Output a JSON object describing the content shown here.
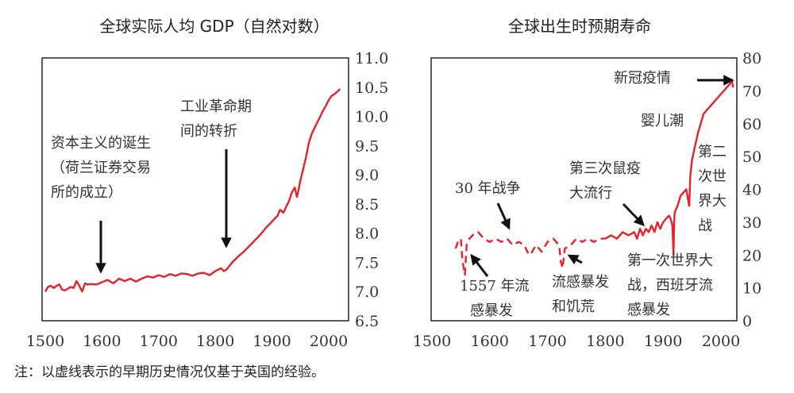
{
  "note": "注：以虚线表示的早期历史情况仅基于英国的经验。",
  "colors": {
    "line": "#e8202a",
    "frame": "#333333",
    "arrow": "#111111"
  },
  "chart_data": [
    {
      "type": "line",
      "title": "全球实际人均 GDP（自然对数）",
      "xlabel": "",
      "ylabel": "",
      "xlim": [
        1495,
        2035
      ],
      "ylim": [
        6.5,
        11.0
      ],
      "xticks": [
        "1500",
        "1600",
        "1700",
        "1800",
        "1900",
        "2000"
      ],
      "yticks": [
        "11.0",
        "10.5",
        "10.0",
        "9.5",
        "9.0",
        "8.5",
        "8.0",
        "7.5",
        "7.0",
        "6.5"
      ],
      "y_axis_side": "right",
      "series": [
        {
          "name": "GDP",
          "style": "solid",
          "x": [
            1500,
            1505,
            1510,
            1515,
            1520,
            1525,
            1530,
            1535,
            1540,
            1545,
            1550,
            1555,
            1560,
            1565,
            1570,
            1575,
            1580,
            1590,
            1600,
            1610,
            1620,
            1630,
            1640,
            1650,
            1660,
            1670,
            1680,
            1690,
            1700,
            1710,
            1720,
            1730,
            1740,
            1750,
            1760,
            1770,
            1780,
            1790,
            1800,
            1810,
            1815,
            1820,
            1830,
            1840,
            1850,
            1860,
            1870,
            1880,
            1890,
            1900,
            1910,
            1914,
            1920,
            1930,
            1935,
            1940,
            1944,
            1946,
            1950,
            1955,
            1960,
            1965,
            1970,
            1975,
            1980,
            1985,
            1990,
            1995,
            2000,
            2005,
            2010,
            2015,
            2020
          ],
          "y": [
            7.0,
            7.08,
            7.1,
            7.06,
            7.1,
            7.12,
            7.03,
            7.02,
            7.05,
            7.08,
            7.06,
            7.18,
            7.1,
            7.0,
            7.14,
            7.12,
            7.13,
            7.12,
            7.16,
            7.2,
            7.14,
            7.22,
            7.18,
            7.22,
            7.17,
            7.22,
            7.26,
            7.24,
            7.28,
            7.25,
            7.3,
            7.27,
            7.31,
            7.3,
            7.27,
            7.31,
            7.32,
            7.28,
            7.35,
            7.4,
            7.35,
            7.38,
            7.5,
            7.6,
            7.68,
            7.78,
            7.88,
            7.98,
            8.1,
            8.2,
            8.3,
            8.4,
            8.35,
            8.55,
            8.7,
            8.78,
            8.62,
            8.7,
            8.9,
            9.1,
            9.3,
            9.55,
            9.7,
            9.8,
            9.9,
            10.0,
            10.1,
            10.18,
            10.28,
            10.35,
            10.38,
            10.42,
            10.47
          ]
        }
      ],
      "annotations": [
        {
          "text_lines": [
            "资本主义的诞生",
            "（荷兰证券交易",
            "所的成立）"
          ],
          "year": 1600
        },
        {
          "text_lines": [
            "工业革命期",
            "间的转折"
          ],
          "year": 1820
        }
      ]
    },
    {
      "type": "line",
      "title": "全球出生时预期寿命",
      "xlabel": "",
      "ylabel": "",
      "xlim": [
        1500,
        2029
      ],
      "ylim": [
        0,
        80
      ],
      "xticks": [
        "1500",
        "1600",
        "1700",
        "1800",
        "1900",
        "2000"
      ],
      "yticks": [
        "80",
        "70",
        "60",
        "50",
        "40",
        "30",
        "20",
        "10",
        "0"
      ],
      "y_axis_side": "right",
      "series": [
        {
          "name": "早期（英国）",
          "style": "dashed",
          "x": [
            1541,
            1545,
            1550,
            1553,
            1557,
            1560,
            1565,
            1570,
            1580,
            1590,
            1600,
            1610,
            1620,
            1630,
            1640,
            1650,
            1660,
            1665,
            1670,
            1680,
            1690,
            1700,
            1710,
            1720,
            1723,
            1726,
            1730,
            1740,
            1750,
            1760,
            1770,
            1780,
            1790,
            1800
          ],
          "y": [
            22,
            24,
            25,
            18,
            14,
            23,
            25,
            26,
            27,
            25,
            24,
            25,
            24,
            25,
            23,
            24,
            23,
            21,
            20,
            23,
            21,
            24,
            25,
            23,
            18,
            16,
            22,
            23,
            25,
            24,
            25,
            24,
            25,
            25
          ]
        },
        {
          "name": "全球",
          "style": "solid",
          "x": [
            1800,
            1810,
            1820,
            1830,
            1840,
            1850,
            1855,
            1860,
            1865,
            1870,
            1875,
            1880,
            1885,
            1890,
            1895,
            1900,
            1905,
            1910,
            1913,
            1916,
            1918,
            1919,
            1920,
            1925,
            1930,
            1935,
            1940,
            1943,
            1945,
            1947,
            1950,
            1955,
            1960,
            1965,
            1970,
            1975,
            1980,
            1990,
            2000,
            2010,
            2015,
            2019,
            2021
          ],
          "y": [
            25,
            26,
            25,
            27,
            26,
            27,
            25,
            28,
            26,
            28,
            27,
            29,
            27,
            30,
            28,
            30,
            31,
            32,
            31,
            29,
            20,
            30,
            33,
            35,
            38,
            39,
            40,
            37,
            35,
            44,
            49,
            53,
            57,
            60,
            63,
            64,
            65,
            67,
            69,
            71,
            72,
            73,
            71
          ]
        }
      ],
      "annotations": [
        {
          "text_lines": [
            "新冠疫情"
          ],
          "year": 2020
        },
        {
          "text_lines": [
            "婴儿潮"
          ],
          "year": 1950
        },
        {
          "text_lines": [
            "第二",
            "次世",
            "界大",
            "战"
          ],
          "year": 1945
        },
        {
          "text_lines": [
            "第三次鼠疫",
            "大流行"
          ],
          "year": 1855
        },
        {
          "text_lines": [
            "30 年战争"
          ],
          "year": 1630
        },
        {
          "text_lines": [
            "1557 年流",
            "感暴发"
          ],
          "year": 1557
        },
        {
          "text_lines": [
            "流感暴发",
            "和饥荒"
          ],
          "year": 1725
        },
        {
          "text_lines": [
            "第一次世界大",
            "战，西班牙流",
            "感暴发"
          ],
          "year": 1918
        }
      ]
    }
  ]
}
